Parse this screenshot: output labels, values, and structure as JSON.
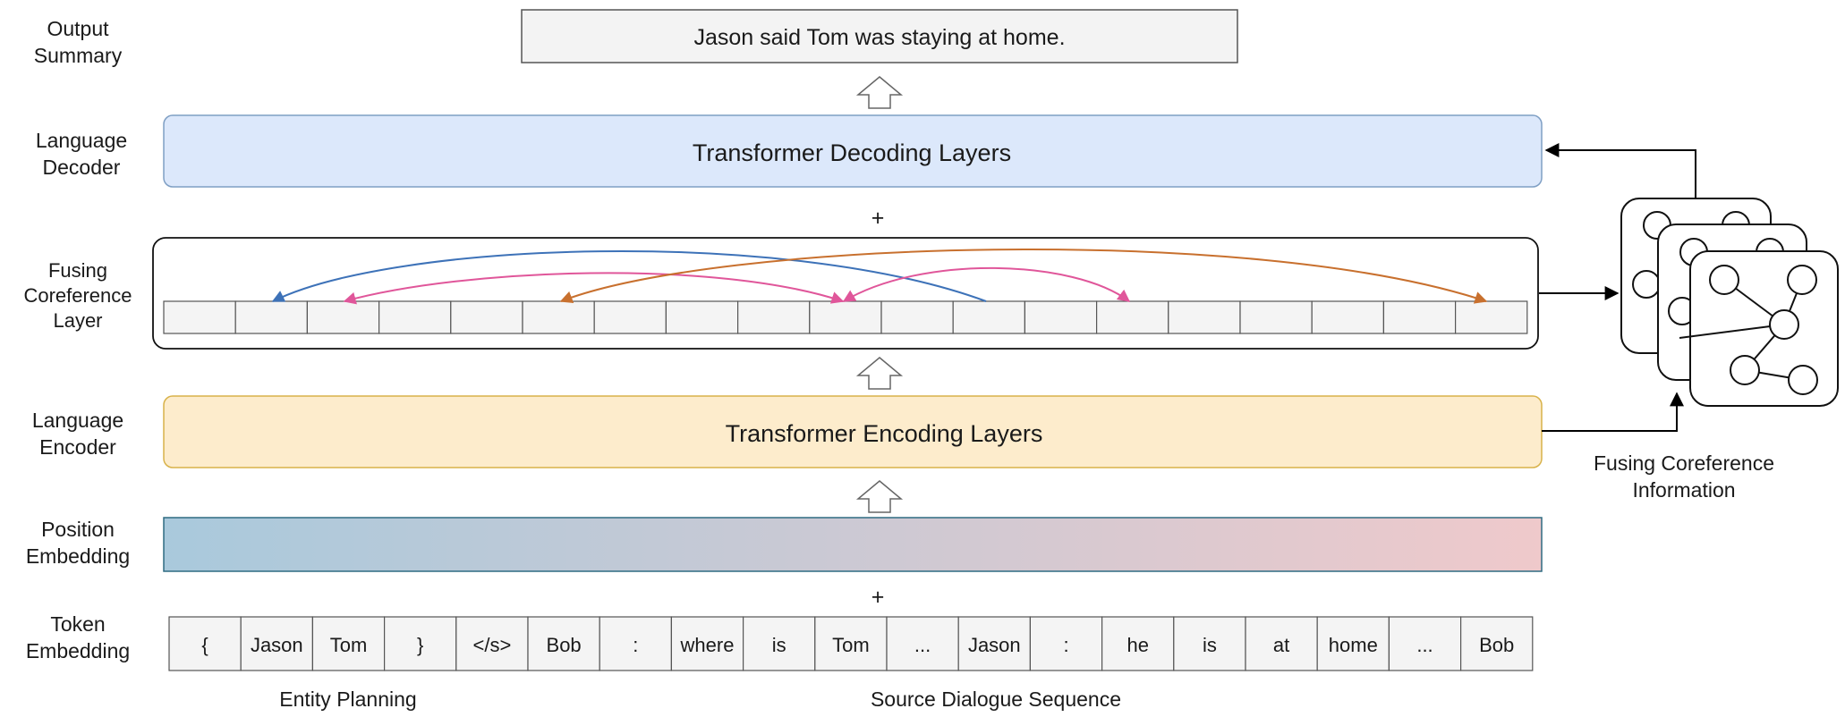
{
  "row_labels": {
    "output_summary": [
      "Output",
      "Summary"
    ],
    "language_decoder": [
      "Language",
      "Decoder"
    ],
    "fusing_coreference_layer": [
      "Fusing",
      "Coreference",
      "Layer"
    ],
    "language_encoder": [
      "Language",
      "Encoder"
    ],
    "position_embedding": [
      "Position",
      "Embedding"
    ],
    "token_embedding": [
      "Token",
      "Embedding"
    ]
  },
  "output_text": "Jason said Tom was staying at home.",
  "decoder_label": "Transformer Decoding Layers",
  "encoder_label": "Transformer Encoding Layers",
  "plus_sign": "+",
  "tokens": [
    "{",
    "Jason",
    "Tom",
    "}",
    "</s>",
    "Bob",
    ":",
    "where",
    "is",
    "Tom",
    "...",
    "Jason",
    ":",
    "he",
    "is",
    "at",
    "home",
    "...",
    "Bob"
  ],
  "entity_planning_label": "Entity Planning",
  "source_dialogue_label": "Source Dialogue Sequence",
  "graph_caption": [
    "Fusing Coreference",
    "Information"
  ],
  "colors": {
    "decoder_fill": "#dce8fb",
    "decoder_border": "#7f9fc4",
    "encoder_fill": "#fdeccc",
    "encoder_border": "#d8b24a",
    "position_gradient_start": "#a9c9dc",
    "position_gradient_end": "#efc9cb",
    "arc_blue": "#3d72b8",
    "arc_pink": "#e0569a",
    "arc_orange": "#c8702e",
    "cell_fill": "#f4f4f4"
  }
}
